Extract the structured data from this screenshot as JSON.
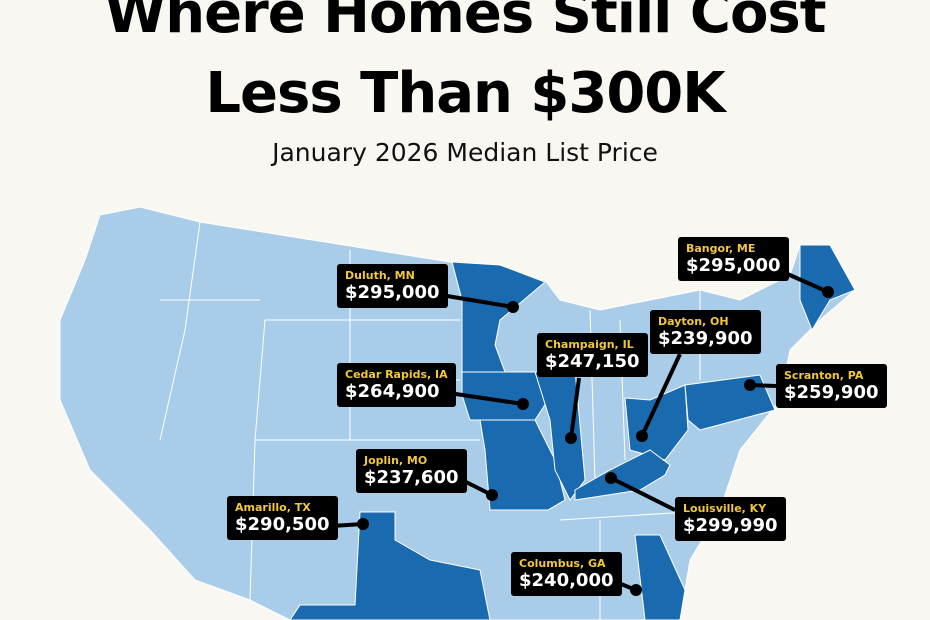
{
  "title_line1": "Where Homes Still Cost",
  "title_line2": "Less Than $300K",
  "subtitle": "January 2026 Median List Price",
  "colors": {
    "background": "#f9f7f2",
    "base_state": "#a9cde8",
    "highlight_state": "#1a6ab0",
    "label_bg": "#000000",
    "city_text": "#f2c83a",
    "price_text": "#ffffff"
  },
  "markers": [
    {
      "city": "Duluth, MN",
      "price": "$295,000"
    },
    {
      "city": "Cedar Rapids, IA",
      "price": "$264,900"
    },
    {
      "city": "Champaign, IL",
      "price": "$247,150"
    },
    {
      "city": "Dayton, OH",
      "price": "$239,900"
    },
    {
      "city": "Bangor, ME",
      "price": "$295,000"
    },
    {
      "city": "Scranton, PA",
      "price": "$259,900"
    },
    {
      "city": "Joplin, MO",
      "price": "$237,600"
    },
    {
      "city": "Louisville, KY",
      "price": "$299,990"
    },
    {
      "city": "Amarillo, TX",
      "price": "$290,500"
    },
    {
      "city": "Columbus, GA",
      "price": "$240,000"
    }
  ]
}
